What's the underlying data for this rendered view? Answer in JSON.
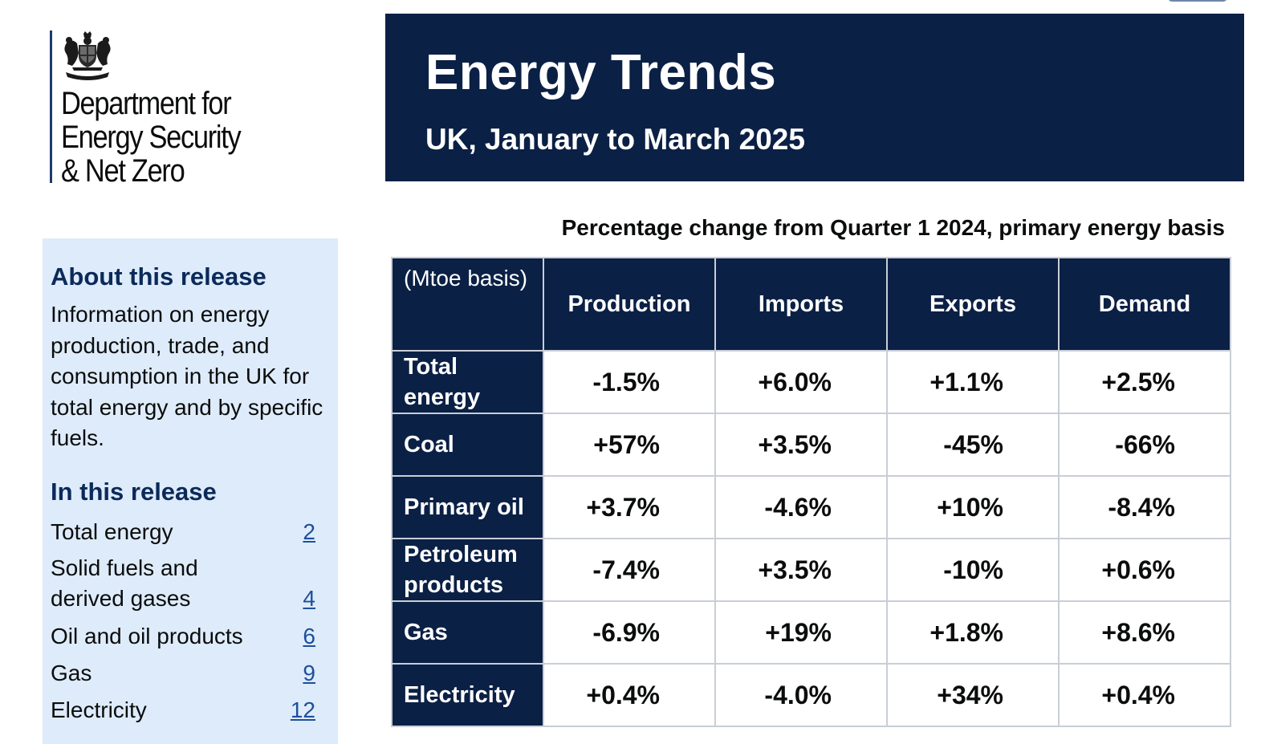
{
  "organisation": {
    "name_lines": [
      "Department for",
      "Energy Security",
      "& Net Zero"
    ]
  },
  "banner": {
    "title": "Energy Trends",
    "subtitle": "UK, January to March 2025"
  },
  "sidebar": {
    "about_heading": "About this release",
    "about_text": "Information on energy production, trade, and consumption in the UK for total energy and by specific fuels.",
    "contents_heading": "In this release",
    "contents": [
      {
        "label": "Total energy",
        "page": "2"
      },
      {
        "label": "Solid fuels and derived gases",
        "page": "4"
      },
      {
        "label": "Oil and oil products",
        "page": "6"
      },
      {
        "label": "Gas",
        "page": "9"
      },
      {
        "label": "Electricity",
        "page": "12"
      }
    ]
  },
  "table": {
    "caption": "Percentage change from Quarter 1 2024, primary energy basis",
    "corner_header": "(Mtoe basis)",
    "columns": [
      "Production",
      "Imports",
      "Exports",
      "Demand"
    ],
    "rows": [
      {
        "label": "Total energy",
        "values": [
          "-1.5%",
          "+6.0%",
          "+1.1%",
          "+2.5%"
        ]
      },
      {
        "label": "Coal",
        "values": [
          "+57%",
          "+3.5%",
          "-45%",
          "-66%"
        ]
      },
      {
        "label": "Primary oil",
        "values": [
          "+3.7%",
          "-4.6%",
          "+10%",
          "-8.4%"
        ]
      },
      {
        "label": "Petroleum products",
        "values": [
          "-7.4%",
          "+3.5%",
          "-10%",
          "+0.6%"
        ]
      },
      {
        "label": "Gas",
        "values": [
          "-6.9%",
          "+19%",
          "+1.8%",
          "+8.6%"
        ]
      },
      {
        "label": "Electricity",
        "values": [
          "+0.4%",
          "-4.0%",
          "+34%",
          "+0.4%"
        ]
      }
    ]
  },
  "colors": {
    "banner_navy": "#0b2045",
    "sidebar_blue": "#deebfa",
    "heading_navy": "#0b2a5a",
    "link_blue": "#1d4f9c"
  },
  "icons": [
    "royal-coat-of-arms-icon"
  ]
}
